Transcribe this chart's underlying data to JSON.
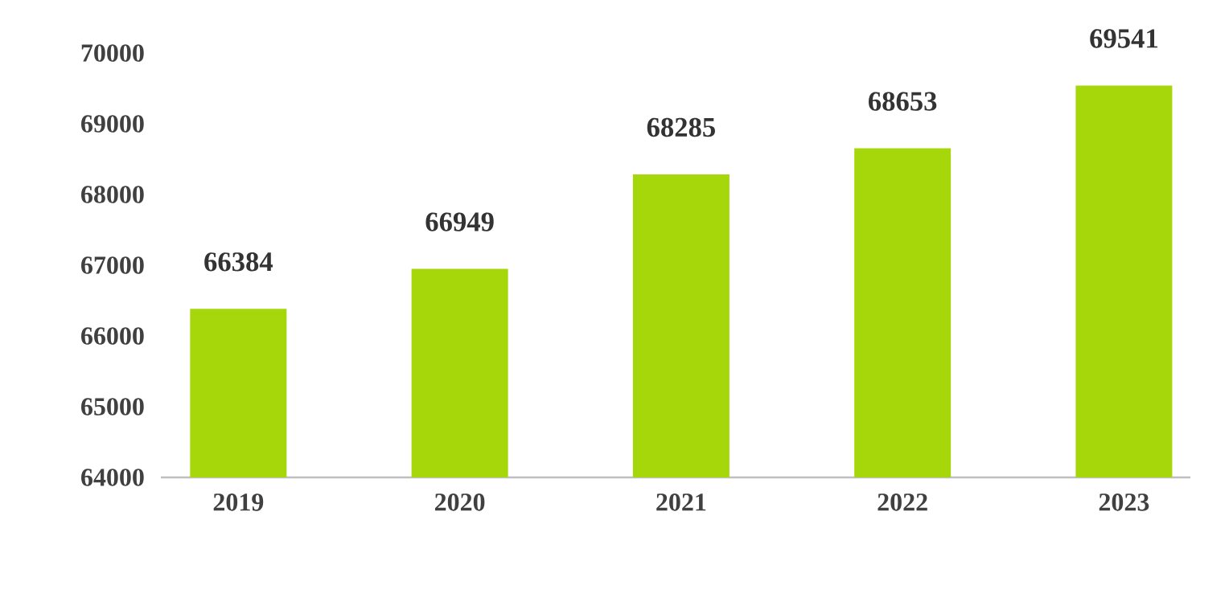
{
  "chart_data": {
    "type": "bar",
    "categories": [
      "2019",
      "2020",
      "2021",
      "2022",
      "2023"
    ],
    "values": [
      66384,
      66949,
      68285,
      68653,
      69541
    ],
    "color": "#a6d70b",
    "ylim": [
      64000,
      70000
    ],
    "yticks": [
      64000,
      65000,
      66000,
      67000,
      68000,
      69000,
      70000
    ],
    "data_labels": true
  }
}
